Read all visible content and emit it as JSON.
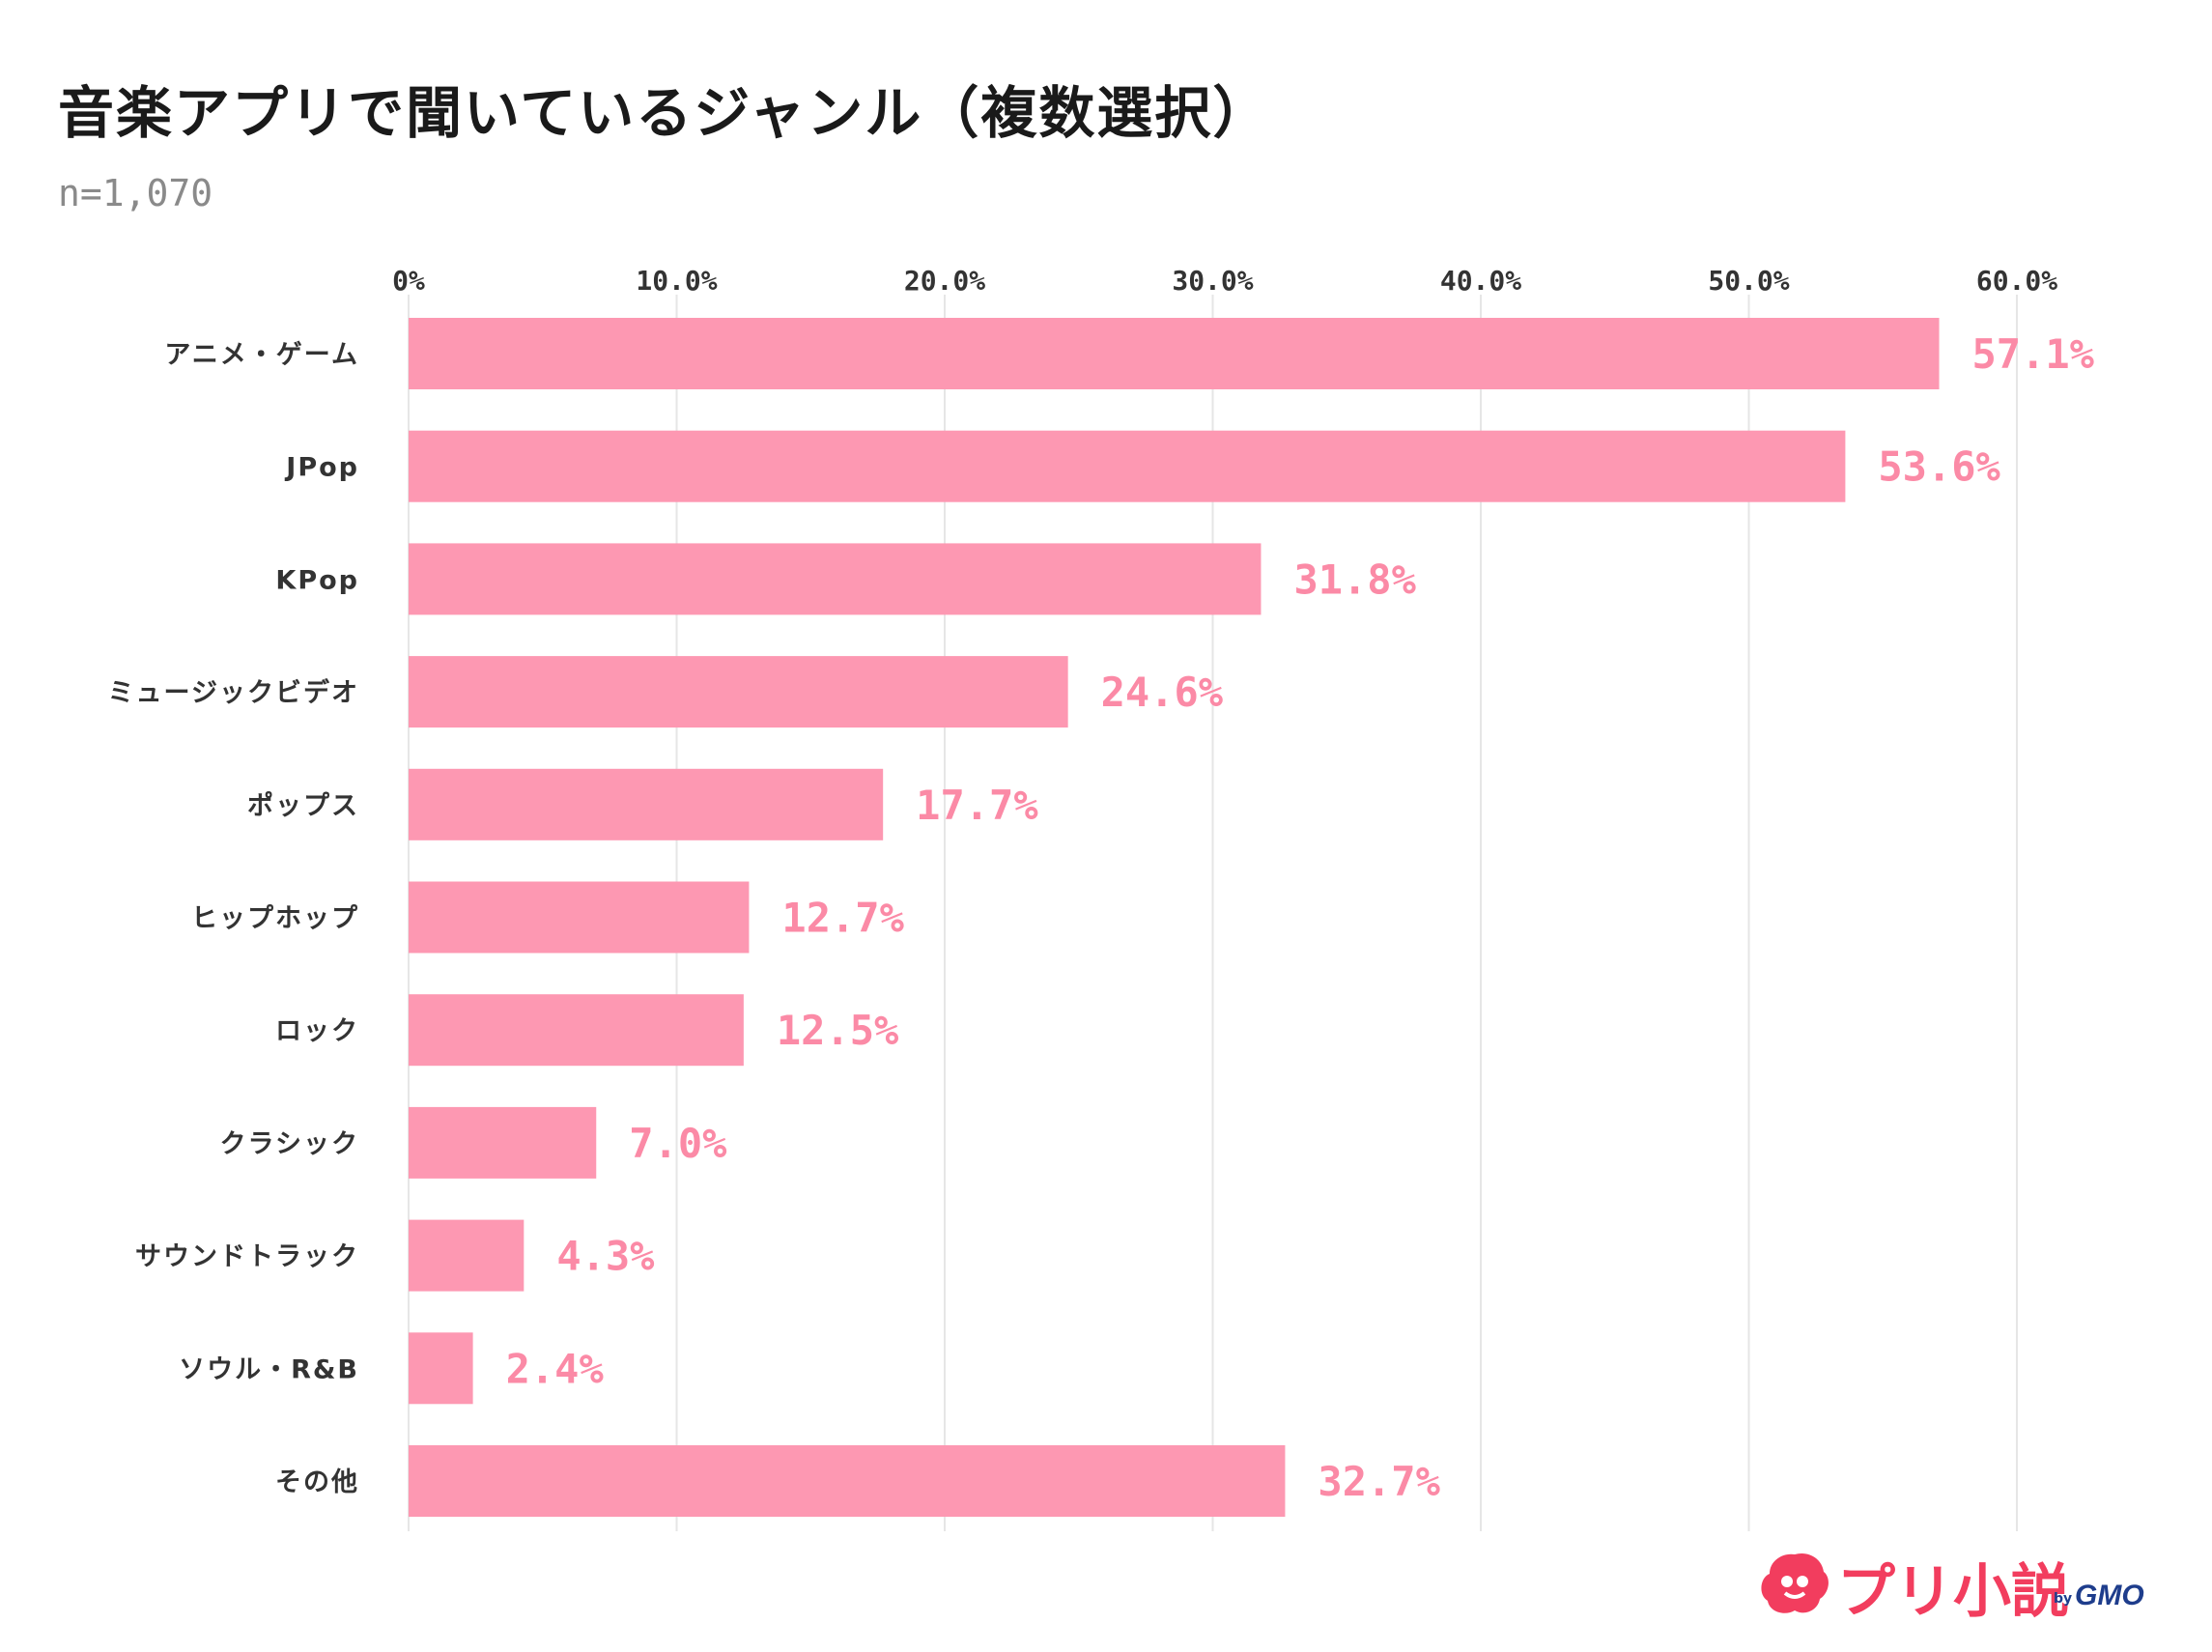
{
  "header": {
    "title": "音楽アプリで聞いているジャンル（複数選択）",
    "sample_size": "n=1,070"
  },
  "brand": {
    "name": "プリ小説",
    "by": "by",
    "company": "GMO"
  },
  "colors": {
    "bar": "#fd98b2",
    "value_label": "#fb8aa6",
    "grid": "#e6e6e6",
    "axis_label": "#333333",
    "brand_primary": "#f23d5e",
    "brand_secondary": "#1e3d8c"
  },
  "chart_data": {
    "type": "bar",
    "orientation": "horizontal",
    "title": "音楽アプリで聞いているジャンル（複数選択）",
    "subtitle": "n=1,070",
    "categories": [
      "アニメ・ゲーム",
      "JPop",
      "KPop",
      "ミュージックビデオ",
      "ポップス",
      "ヒップホップ",
      "ロック",
      "クラシック",
      "サウンドトラック",
      "ソウル・R&B",
      "その他"
    ],
    "values": [
      57.1,
      53.6,
      31.8,
      24.6,
      17.7,
      12.7,
      12.5,
      7.0,
      4.3,
      2.4,
      32.7
    ],
    "value_labels": [
      "57.1%",
      "53.6%",
      "31.8%",
      "24.6%",
      "17.7%",
      "12.7%",
      "12.5%",
      "7.0%",
      "4.3%",
      "2.4%",
      "32.7%"
    ],
    "xlim": [
      0,
      60
    ],
    "ticks": [
      0,
      10,
      20,
      30,
      40,
      50,
      60
    ],
    "tick_labels": [
      "0%",
      "10.0%",
      "20.0%",
      "30.0%",
      "40.0%",
      "50.0%",
      "60.0%"
    ],
    "xlabel": "",
    "ylabel": "",
    "grid": true,
    "legend": "none"
  }
}
